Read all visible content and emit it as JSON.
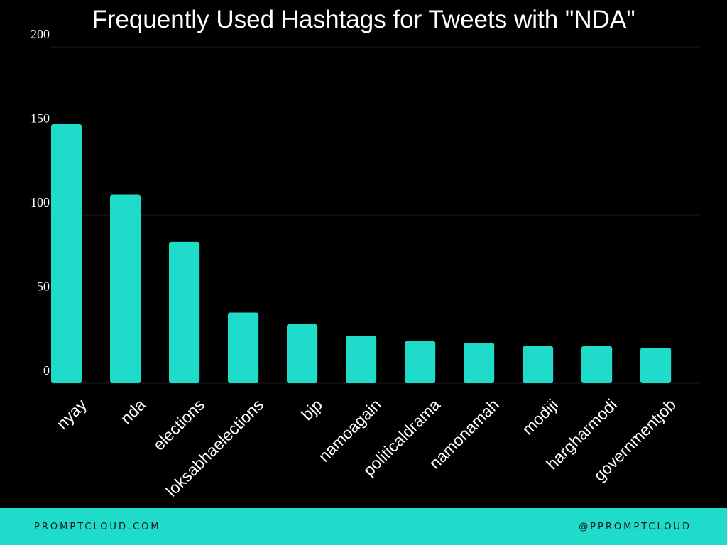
{
  "chart_data": {
    "type": "bar",
    "title": "Frequently Used Hashtags for Tweets with \"NDA\"",
    "categories": [
      "nyay",
      "nda",
      "elections",
      "loksabhaelections",
      "bjp",
      "namoagain",
      "politicaldrama",
      "namonamah",
      "modiji",
      "hargharmodi",
      "governmentjob"
    ],
    "values": [
      154,
      112,
      84,
      42,
      35,
      28,
      25,
      24,
      22,
      22,
      21
    ],
    "ylim": [
      0,
      200
    ],
    "yticks": [
      0,
      50,
      100,
      150,
      200
    ],
    "xlabel": "",
    "ylabel": "",
    "grid": true,
    "bar_color": "#1fdbc9",
    "background_color": "#000000"
  },
  "footer": {
    "left": "PROMPTCLOUD.COM",
    "right": "@PPROMPTCLOUD",
    "color": "#1fdbc9"
  }
}
